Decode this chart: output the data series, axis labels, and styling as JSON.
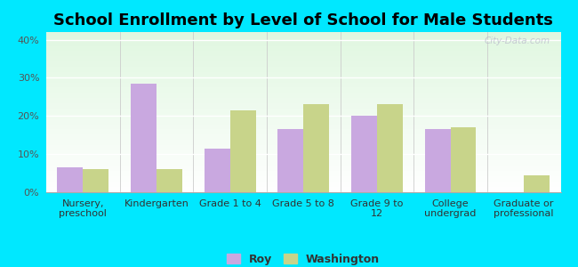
{
  "title": "School Enrollment by Level of School for Male Students",
  "categories": [
    "Nursery,\npreschool",
    "Kindergarten",
    "Grade 1 to 4",
    "Grade 5 to 8",
    "Grade 9 to\n12",
    "College\nundergrad",
    "Graduate or\nprofessional"
  ],
  "roy_values": [
    6.5,
    28.5,
    11.5,
    16.5,
    20.0,
    16.5,
    0.0
  ],
  "washington_values": [
    6.0,
    6.0,
    21.5,
    23.0,
    23.0,
    17.0,
    4.5
  ],
  "roy_color": "#c9a8e0",
  "washington_color": "#c8d48a",
  "background_color": "#00e8ff",
  "ylim": [
    0,
    42
  ],
  "yticks": [
    0,
    10,
    20,
    30,
    40
  ],
  "ytick_labels": [
    "0%",
    "10%",
    "20%",
    "30%",
    "40%"
  ],
  "legend_labels": [
    "Roy",
    "Washington"
  ],
  "bar_width": 0.35,
  "title_fontsize": 13,
  "tick_fontsize": 8,
  "legend_fontsize": 9
}
